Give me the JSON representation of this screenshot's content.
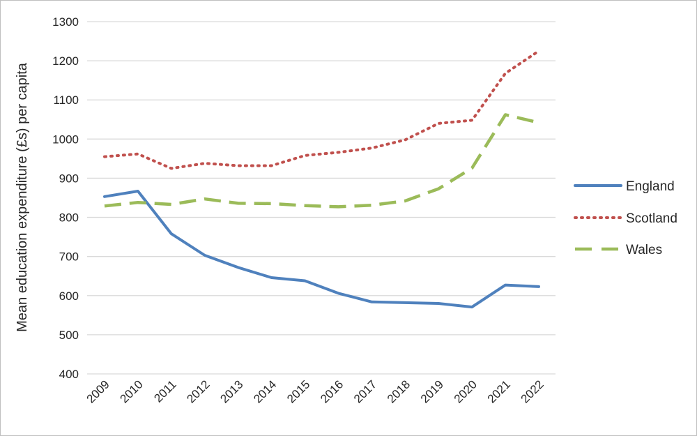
{
  "chart_data": {
    "type": "line",
    "title": "",
    "xlabel": "",
    "ylabel": "Mean education expenditure (£s) per capita",
    "ylim": [
      400,
      1300
    ],
    "yticks": [
      400,
      500,
      600,
      700,
      800,
      900,
      1000,
      1100,
      1200,
      1300
    ],
    "grid": "horizontal",
    "legend_position": "right",
    "categories": [
      "2009",
      "2010",
      "2011",
      "2012",
      "2013",
      "2014",
      "2015",
      "2016",
      "2017",
      "2018",
      "2019",
      "2020",
      "2021",
      "2022"
    ],
    "series": [
      {
        "name": "England",
        "color": "#4f81bd",
        "style": "solid",
        "values": [
          853,
          867,
          758,
          703,
          672,
          646,
          638,
          606,
          584,
          582,
          580,
          571,
          627,
          623
        ]
      },
      {
        "name": "Scotland",
        "color": "#c0504d",
        "style": "dotted",
        "values": [
          955,
          962,
          925,
          938,
          932,
          932,
          958,
          966,
          977,
          998,
          1040,
          1048,
          1168,
          1225
        ]
      },
      {
        "name": "Wales",
        "color": "#9bbb59",
        "style": "dashed",
        "values": [
          829,
          838,
          833,
          847,
          836,
          835,
          830,
          827,
          831,
          842,
          873,
          926,
          1062,
          1042
        ]
      }
    ]
  }
}
